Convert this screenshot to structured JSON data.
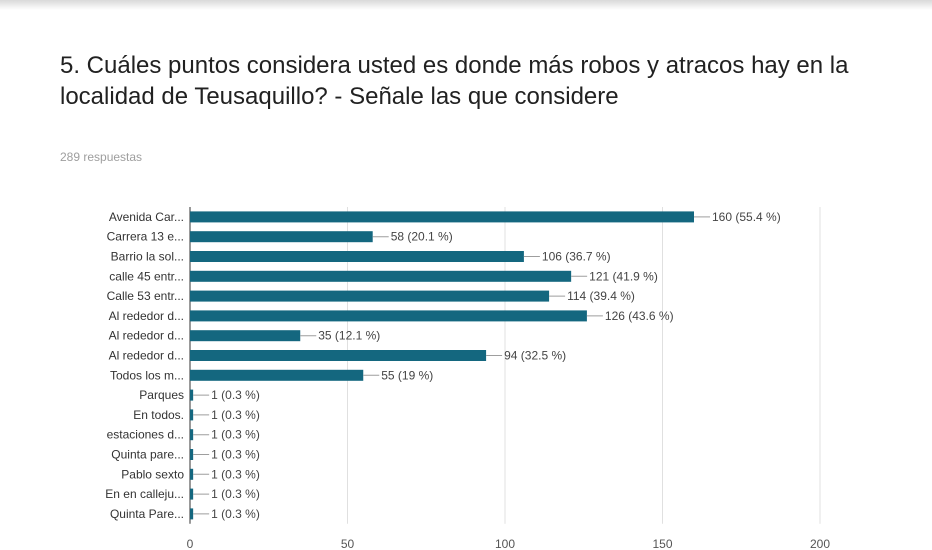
{
  "question": {
    "title": "5. Cuáles puntos considera usted es donde más robos y atracos hay en la localidad de Teusaquillo? - Señale las que considere",
    "responses": "289 respuestas"
  },
  "colors": {
    "bar": "#14677f",
    "grid": "#e0e0e0",
    "axis": "#333333"
  },
  "chart_data": {
    "type": "bar",
    "orientation": "horizontal",
    "categories": [
      "Avenida Car...",
      "Carrera 13 e...",
      "Barrio la sol...",
      "calle 45 entr...",
      "Calle 53 entr...",
      "Al rededor d...",
      "Al rededor d...",
      "Al rededor d...",
      "Todos los m...",
      "Parques",
      "En todos.",
      "estaciones d...",
      "Quinta pare...",
      "Pablo sexto",
      "En en calleju...",
      "Quinta Pare..."
    ],
    "values": [
      160,
      58,
      106,
      121,
      114,
      126,
      35,
      94,
      55,
      1,
      1,
      1,
      1,
      1,
      1,
      1
    ],
    "data_labels": [
      "160 (55.4 %)",
      "58 (20.1 %)",
      "106 (36.7 %)",
      "121 (41.9 %)",
      "114 (39.4 %)",
      "126 (43.6 %)",
      "35 (12.1 %)",
      "94 (32.5 %)",
      "55 (19 %)",
      "1 (0.3 %)",
      "1 (0.3 %)",
      "1 (0.3 %)",
      "1 (0.3 %)",
      "1 (0.3 %)",
      "1 (0.3 %)",
      "1 (0.3 %)"
    ],
    "xlim": [
      0,
      200
    ],
    "xticks": [
      0,
      50,
      100,
      150,
      200
    ],
    "grid": true,
    "title": "",
    "xlabel": "",
    "ylabel": ""
  }
}
